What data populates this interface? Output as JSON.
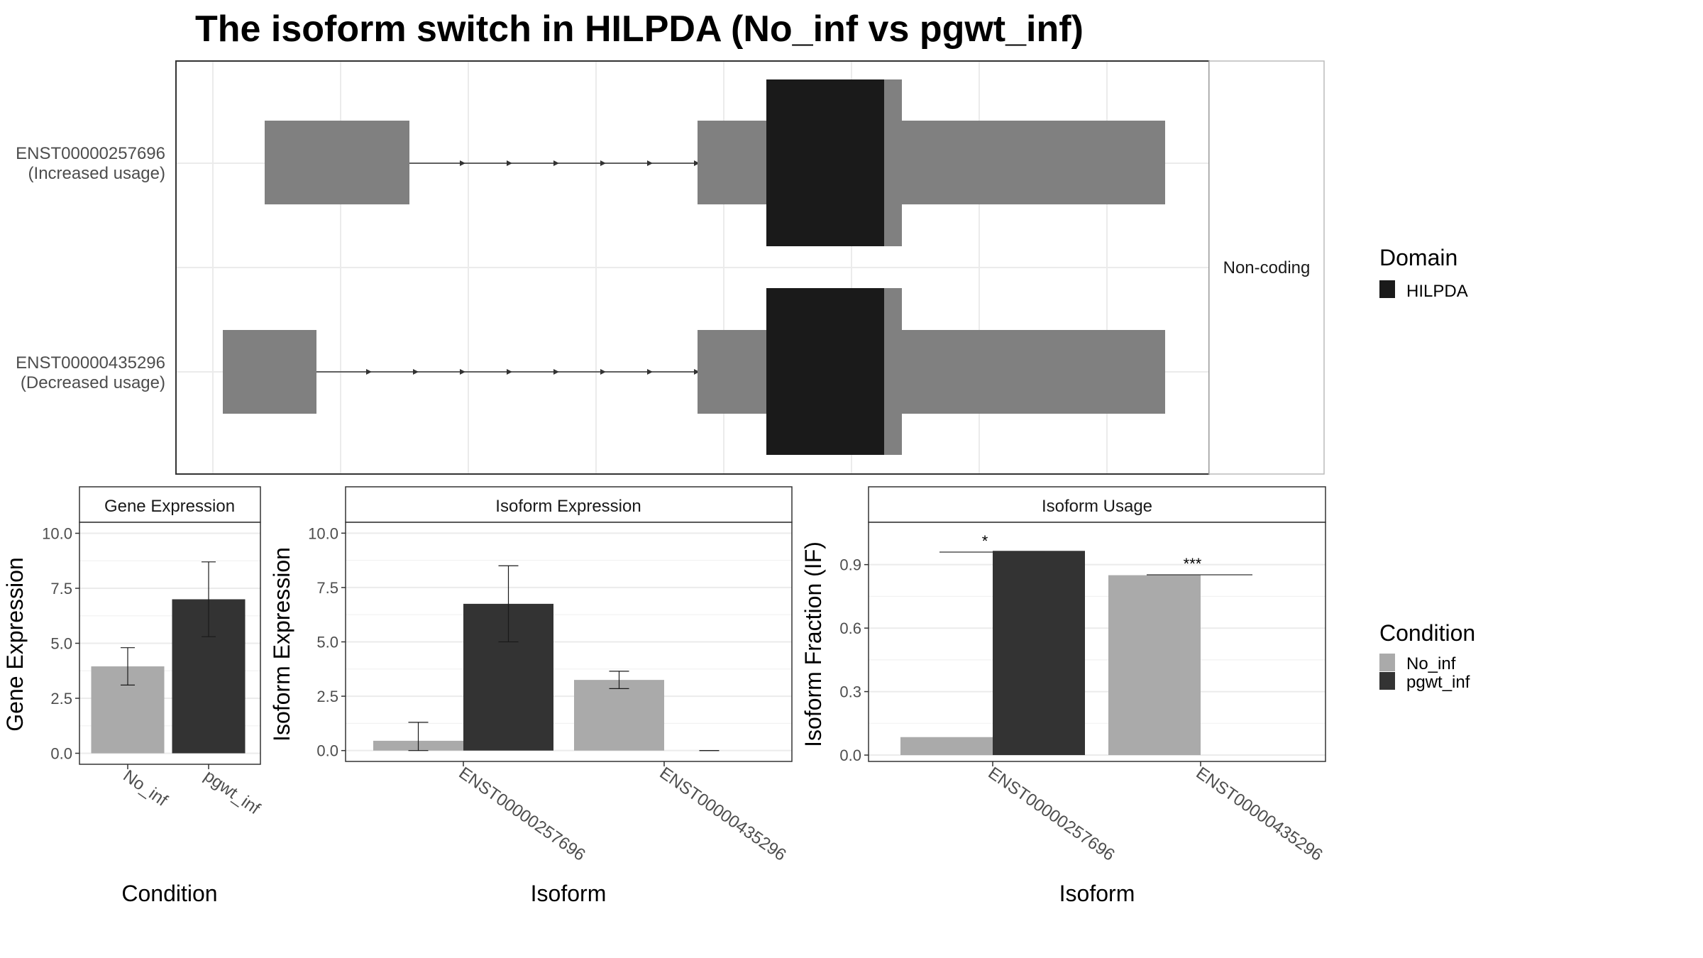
{
  "title": "The isoform switch in HILPDA (No_inf vs pgwt_inf)",
  "colors": {
    "exon": "#808080",
    "domain": "#1a1a1a",
    "no_inf": "#aaaaaa",
    "pgwt_inf": "#333333",
    "grid": "#ebebeb",
    "frame": "#333333"
  },
  "chart_data": [
    {
      "type": "other",
      "description_kind": "isoform structure",
      "facet_label": "Non-coding",
      "isoforms": [
        {
          "id": "ENST00000257696",
          "usage_label": "(Increased usage)"
        },
        {
          "id": "ENST00000435296",
          "usage_label": "(Decreased usage)"
        }
      ],
      "legend": {
        "title": "Domain",
        "entries": [
          {
            "name": "HILPDA",
            "color": "#1a1a1a"
          }
        ]
      }
    },
    {
      "type": "bar",
      "facet_label": "Gene Expression",
      "xlabel": "Condition",
      "ylabel": "Gene Expression",
      "ylim": [
        0,
        10.5
      ],
      "yticks": [
        "0.0",
        "2.5",
        "5.0",
        "7.5",
        "10.0"
      ],
      "categories": [
        "No_inf",
        "pgwt_inf"
      ],
      "values": [
        3.95,
        7.0
      ],
      "errors": [
        [
          3.1,
          4.8
        ],
        [
          5.3,
          8.7
        ]
      ]
    },
    {
      "type": "bar",
      "facet_label": "Isoform Expression",
      "xlabel": "Isoform",
      "ylabel": "Isoform Expression",
      "ylim": [
        0,
        10.5
      ],
      "yticks": [
        "0.0",
        "2.5",
        "5.0",
        "7.5",
        "10.0"
      ],
      "categories": [
        "ENST00000257696",
        "ENST00000435296"
      ],
      "series": [
        {
          "name": "No_inf",
          "values": [
            0.45,
            3.25
          ],
          "errors": [
            [
              0.0,
              1.3
            ],
            [
              2.85,
              3.65
            ]
          ]
        },
        {
          "name": "pgwt_inf",
          "values": [
            6.75,
            0.0
          ],
          "errors": [
            [
              5.0,
              8.5
            ],
            [
              0.0,
              0.0
            ]
          ]
        }
      ]
    },
    {
      "type": "bar",
      "facet_label": "Isoform Usage",
      "xlabel": "Isoform",
      "ylabel": "Isoform Fraction (IF)",
      "ylim": [
        -0.03,
        1.1
      ],
      "yticks": [
        "0.0",
        "0.3",
        "0.6",
        "0.9"
      ],
      "categories": [
        "ENST00000257696",
        "ENST00000435296"
      ],
      "series": [
        {
          "name": "No_inf",
          "values": [
            0.085,
            0.85
          ]
        },
        {
          "name": "pgwt_inf",
          "values": [
            0.965,
            0.0
          ]
        }
      ],
      "significance": [
        "*",
        "***"
      ]
    }
  ],
  "condition_legend": {
    "title": "Condition",
    "entries": [
      {
        "name": "No_inf",
        "color": "#aaaaaa"
      },
      {
        "name": "pgwt_inf",
        "color": "#333333"
      }
    ]
  }
}
